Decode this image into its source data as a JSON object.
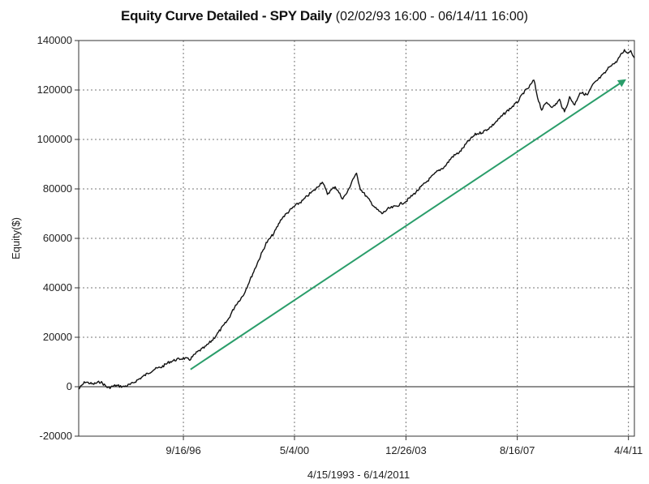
{
  "chart_data": {
    "type": "line",
    "title": "Equity Curve Detailed - SPY Daily",
    "subtitle": "(02/02/93 16:00 - 06/14/11  16:00)",
    "xlabel": "4/15/1993 - 6/14/2011",
    "ylabel": "Equity($)",
    "ylim": [
      -20000,
      140000
    ],
    "yticks": [
      -20000,
      0,
      20000,
      40000,
      60000,
      80000,
      100000,
      120000,
      140000
    ],
    "xlim": [
      "1993-04-15",
      "2011-06-14"
    ],
    "xticks": [
      {
        "label": "9/16/96",
        "date": "1996-09-16"
      },
      {
        "label": "5/4/00",
        "date": "2000-05-04"
      },
      {
        "label": "12/26/03",
        "date": "2003-12-26"
      },
      {
        "label": "8/16/07",
        "date": "2007-08-16"
      },
      {
        "label": "4/4/11",
        "date": "2011-04-04"
      }
    ],
    "grid": true,
    "series": [
      {
        "color": "#111111",
        "points": [
          [
            "1993-04-15",
            -1000
          ],
          [
            "1993-07-01",
            2000
          ],
          [
            "1993-10-01",
            1000
          ],
          [
            "1994-01-01",
            2000
          ],
          [
            "1994-04-01",
            -500
          ],
          [
            "1994-07-01",
            500
          ],
          [
            "1994-10-01",
            0
          ],
          [
            "1995-01-01",
            1000
          ],
          [
            "1995-04-01",
            3000
          ],
          [
            "1995-07-01",
            5000
          ],
          [
            "1995-10-01",
            7000
          ],
          [
            "1996-01-01",
            8000
          ],
          [
            "1996-04-01",
            10000
          ],
          [
            "1996-07-01",
            11000
          ],
          [
            "1996-09-16",
            11500
          ],
          [
            "1996-12-01",
            11000
          ],
          [
            "1997-03-01",
            14000
          ],
          [
            "1997-06-01",
            16000
          ],
          [
            "1997-09-01",
            19000
          ],
          [
            "1997-12-01",
            23000
          ],
          [
            "1998-03-01",
            27000
          ],
          [
            "1998-06-01",
            33000
          ],
          [
            "1998-09-01",
            37000
          ],
          [
            "1998-12-01",
            44000
          ],
          [
            "1999-03-01",
            51000
          ],
          [
            "1999-06-01",
            58000
          ],
          [
            "1999-09-01",
            62000
          ],
          [
            "1999-12-01",
            68000
          ],
          [
            "2000-03-01",
            71000
          ],
          [
            "2000-05-04",
            73000
          ],
          [
            "2000-08-01",
            75000
          ],
          [
            "2000-11-01",
            78000
          ],
          [
            "2001-01-15",
            80000
          ],
          [
            "2001-04-01",
            83000
          ],
          [
            "2001-06-01",
            78000
          ],
          [
            "2001-09-01",
            81000
          ],
          [
            "2001-12-01",
            76000
          ],
          [
            "2002-02-01",
            79000
          ],
          [
            "2002-04-01",
            84000
          ],
          [
            "2002-05-15",
            86000
          ],
          [
            "2002-07-01",
            80000
          ],
          [
            "2002-10-01",
            76000
          ],
          [
            "2003-01-01",
            72000
          ],
          [
            "2003-03-15",
            70000
          ],
          [
            "2003-06-01",
            72000
          ],
          [
            "2003-09-01",
            73000
          ],
          [
            "2003-12-26",
            75000
          ],
          [
            "2004-04-01",
            78000
          ],
          [
            "2004-07-01",
            81000
          ],
          [
            "2004-10-01",
            84000
          ],
          [
            "2005-01-01",
            87000
          ],
          [
            "2005-04-01",
            89000
          ],
          [
            "2005-07-01",
            93000
          ],
          [
            "2005-10-01",
            95000
          ],
          [
            "2006-01-01",
            99000
          ],
          [
            "2006-04-01",
            102000
          ],
          [
            "2006-07-01",
            103000
          ],
          [
            "2006-10-01",
            105000
          ],
          [
            "2007-01-01",
            108000
          ],
          [
            "2007-04-01",
            111000
          ],
          [
            "2007-08-16",
            115000
          ],
          [
            "2007-11-01",
            119000
          ],
          [
            "2008-01-01",
            121000
          ],
          [
            "2008-03-01",
            124000
          ],
          [
            "2008-04-15",
            117000
          ],
          [
            "2008-06-01",
            112000
          ],
          [
            "2008-08-01",
            115000
          ],
          [
            "2008-10-15",
            113000
          ],
          [
            "2009-01-01",
            116000
          ],
          [
            "2009-03-01",
            111000
          ],
          [
            "2009-05-01",
            117000
          ],
          [
            "2009-07-01",
            114000
          ],
          [
            "2009-09-01",
            119000
          ],
          [
            "2009-12-01",
            118000
          ],
          [
            "2010-02-01",
            122000
          ],
          [
            "2010-05-01",
            125000
          ],
          [
            "2010-07-01",
            127000
          ],
          [
            "2010-09-01",
            130000
          ],
          [
            "2010-11-01",
            131000
          ],
          [
            "2011-01-01",
            134000
          ],
          [
            "2011-02-15",
            136000
          ],
          [
            "2011-04-04",
            135000
          ],
          [
            "2011-05-01",
            136000
          ],
          [
            "2011-06-14",
            133000
          ]
        ]
      }
    ],
    "annotations": [
      {
        "type": "arrow",
        "color": "#2a9d6a",
        "from": [
          "1996-12-10",
          7000
        ],
        "to": [
          "2011-02-20",
          124000
        ]
      }
    ]
  }
}
